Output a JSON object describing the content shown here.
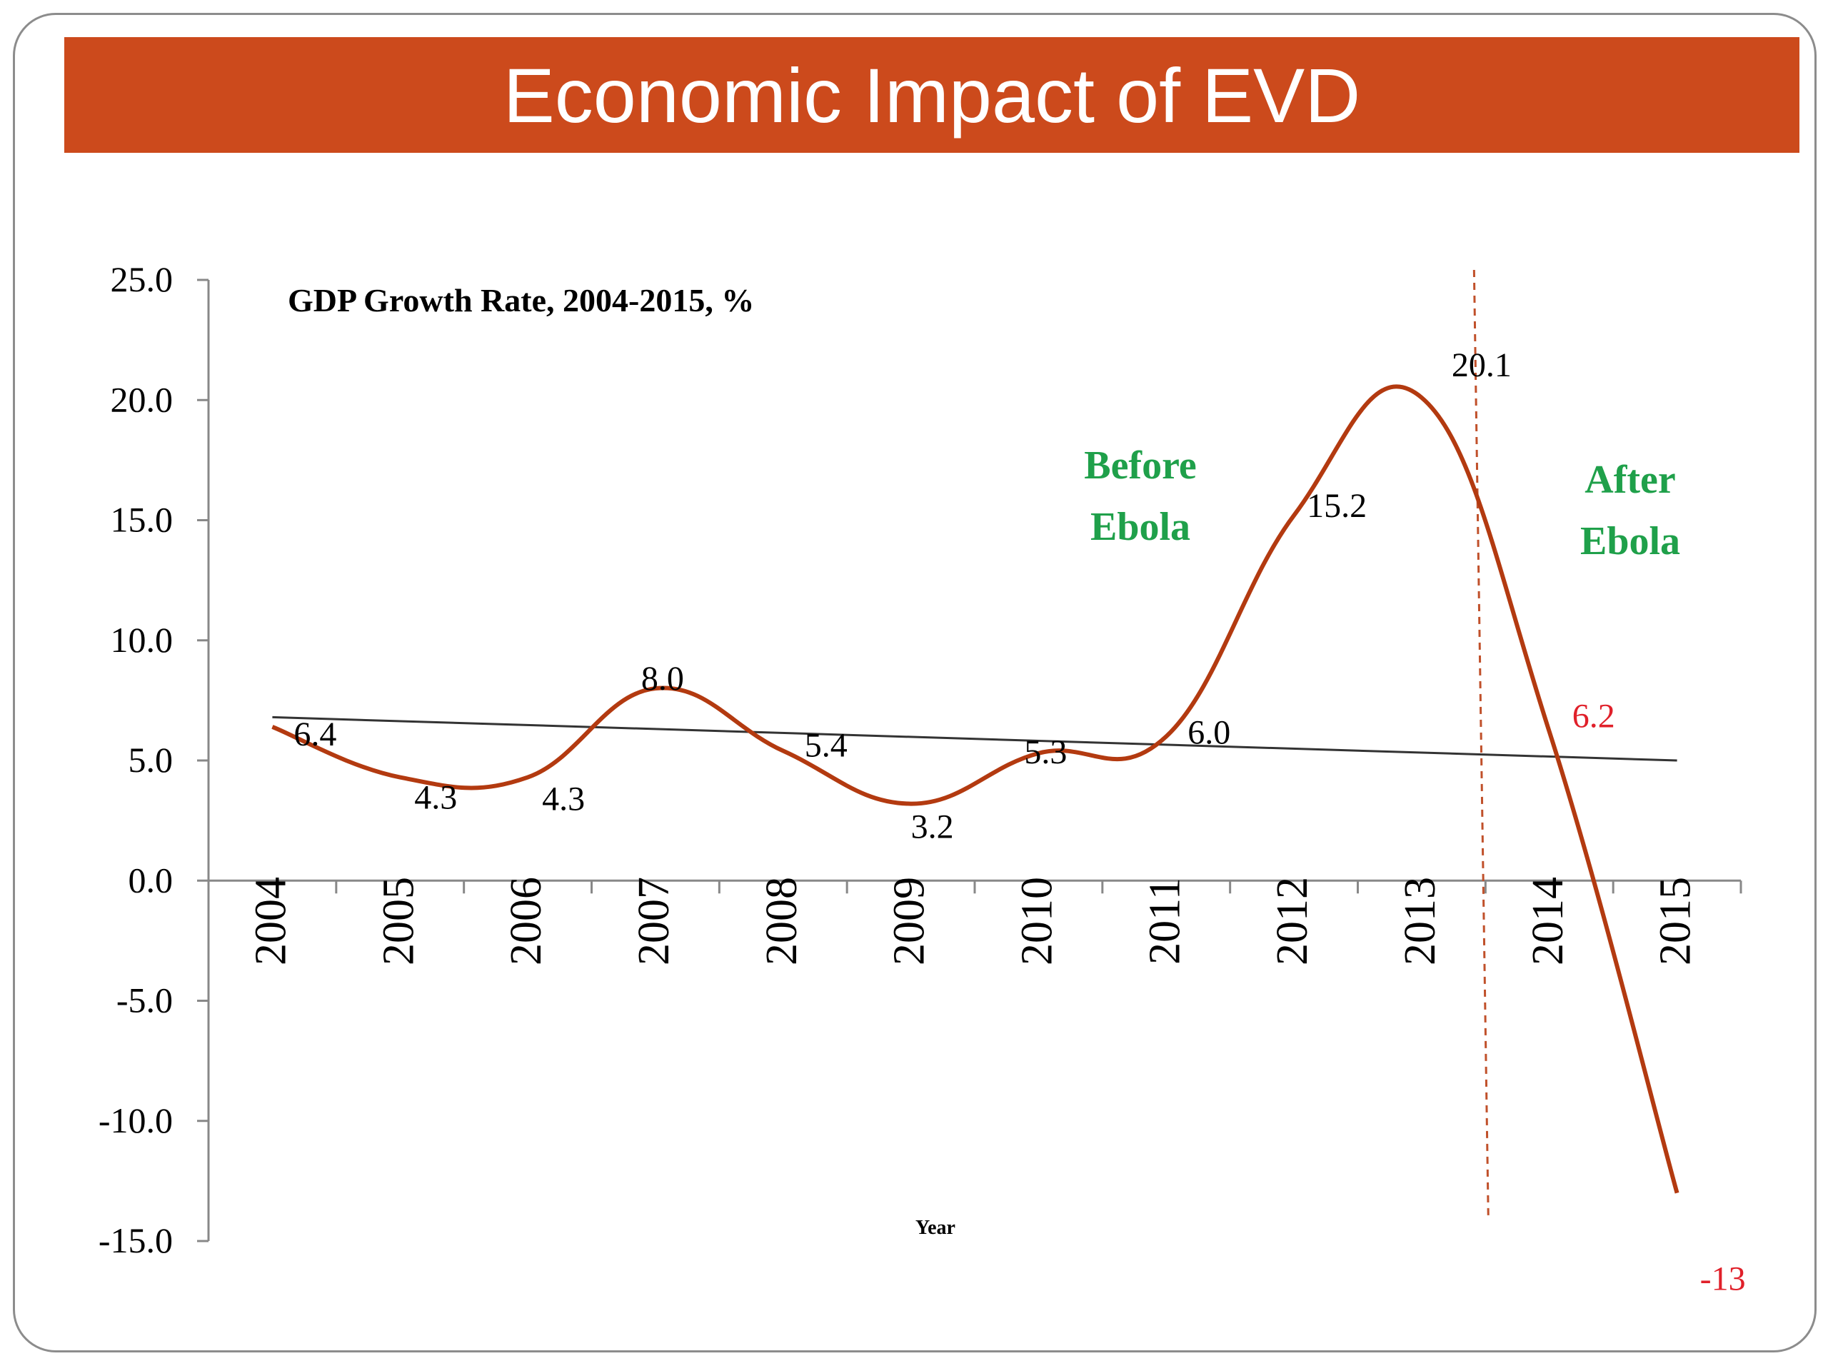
{
  "slide": {
    "title": "Economic Impact of EVD"
  },
  "colors": {
    "header_bg": "#cc4a1c",
    "series_line": "#b33a10",
    "trend_line": "#333333",
    "annotation_green": "#1fa04a",
    "after_values_red": "#e0202a",
    "divider": "#c0502a"
  },
  "chart_data": {
    "type": "line",
    "title": "GDP Growth Rate, 2004-2015, %",
    "xlabel": "Year",
    "ylabel": "",
    "ylim": [
      -15,
      25
    ],
    "yticks": [
      "25.0",
      "20.0",
      "15.0",
      "10.0",
      "5.0",
      "0.0",
      "-5.0",
      "-10.0",
      "-15.0"
    ],
    "categories": [
      "2004",
      "2005",
      "2006",
      "2007",
      "2008",
      "2009",
      "2010",
      "2011",
      "2012",
      "2013",
      "2014",
      "2015"
    ],
    "series": [
      {
        "values": [
          6.4,
          4.3,
          4.3,
          8.0,
          5.4,
          3.2,
          5.3,
          6.0,
          15.2,
          20.1,
          6.2,
          -13
        ],
        "labels": [
          "6.4",
          "4.3",
          "4.3",
          "8.0",
          "5.4",
          "3.2",
          "5.3",
          "6.0",
          "15.2",
          "20.1",
          "6.2",
          "-13"
        ]
      }
    ],
    "trendline": {
      "start": 6.8,
      "end": 5.0
    },
    "annotations": {
      "before": "Before Ebola",
      "after": "After Ebola"
    },
    "divider_between": [
      "2013",
      "2014"
    ],
    "grid": false,
    "legend": "none"
  }
}
